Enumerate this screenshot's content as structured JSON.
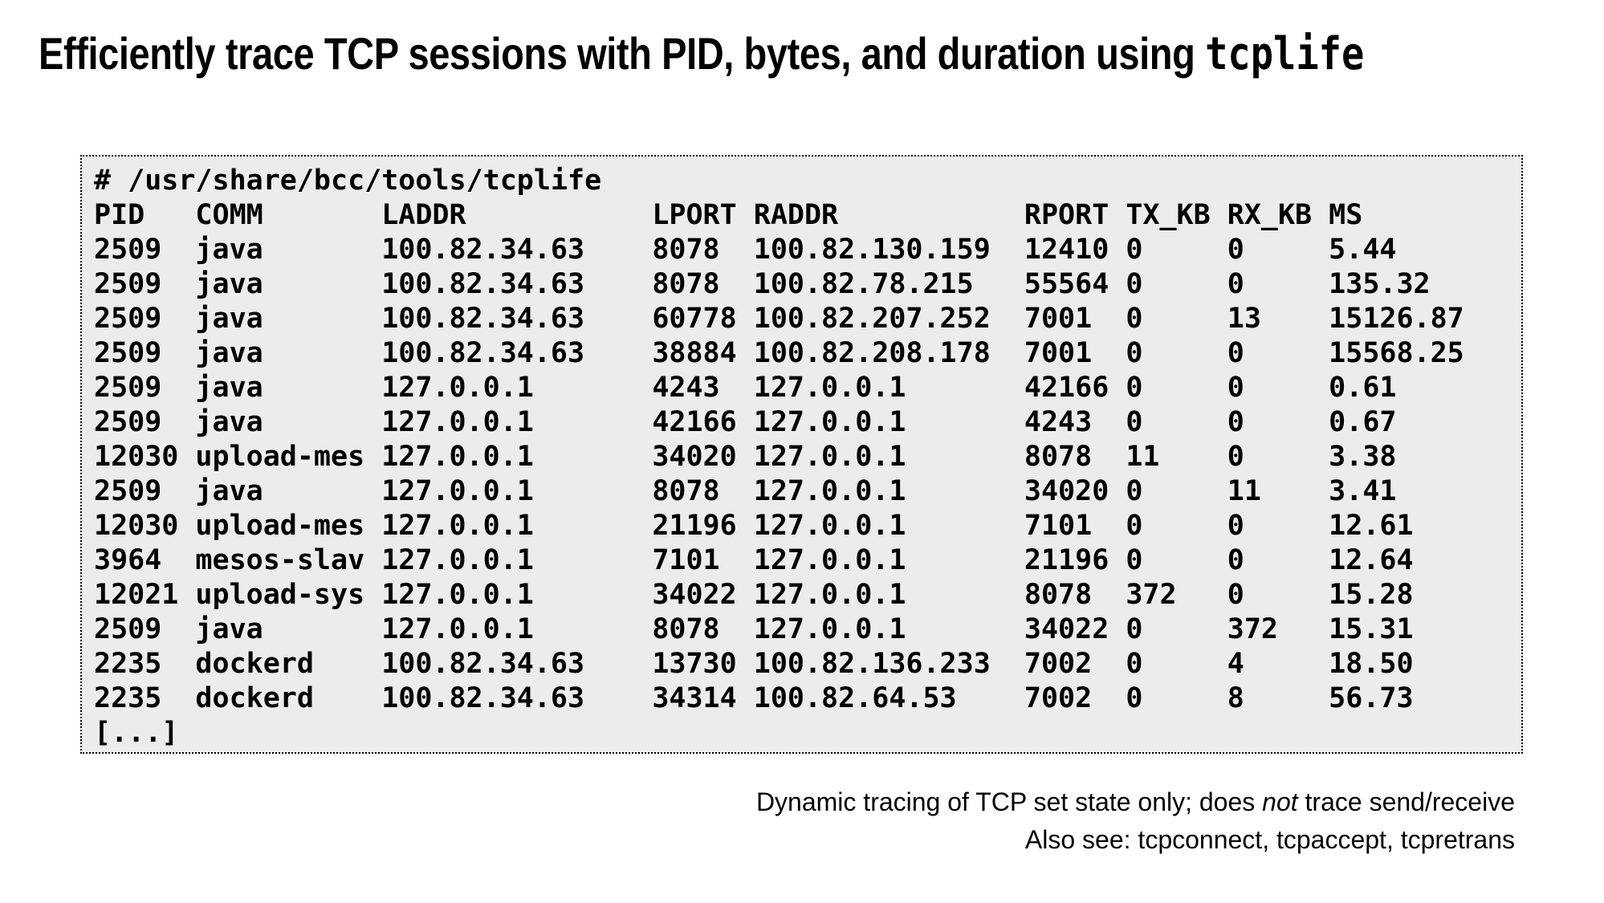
{
  "title": {
    "text_before": "Efficiently trace TCP sessions with PID, bytes, and duration using ",
    "code": "tcplife"
  },
  "terminal": {
    "command": "# /usr/share/bcc/tools/tcplife",
    "columns": [
      "PID",
      "COMM",
      "LADDR",
      "LPORT",
      "RADDR",
      "RPORT",
      "TX_KB",
      "RX_KB",
      "MS"
    ],
    "rows": [
      [
        "2509",
        "java",
        "100.82.34.63",
        "8078",
        "100.82.130.159",
        "12410",
        "0",
        "0",
        "5.44"
      ],
      [
        "2509",
        "java",
        "100.82.34.63",
        "8078",
        "100.82.78.215",
        "55564",
        "0",
        "0",
        "135.32"
      ],
      [
        "2509",
        "java",
        "100.82.34.63",
        "60778",
        "100.82.207.252",
        "7001",
        "0",
        "13",
        "15126.87"
      ],
      [
        "2509",
        "java",
        "100.82.34.63",
        "38884",
        "100.82.208.178",
        "7001",
        "0",
        "0",
        "15568.25"
      ],
      [
        "2509",
        "java",
        "127.0.0.1",
        "4243",
        "127.0.0.1",
        "42166",
        "0",
        "0",
        "0.61"
      ],
      [
        "2509",
        "java",
        "127.0.0.1",
        "42166",
        "127.0.0.1",
        "4243",
        "0",
        "0",
        "0.67"
      ],
      [
        "12030",
        "upload-mes",
        "127.0.0.1",
        "34020",
        "127.0.0.1",
        "8078",
        "11",
        "0",
        "3.38"
      ],
      [
        "2509",
        "java",
        "127.0.0.1",
        "8078",
        "127.0.0.1",
        "34020",
        "0",
        "11",
        "3.41"
      ],
      [
        "12030",
        "upload-mes",
        "127.0.0.1",
        "21196",
        "127.0.0.1",
        "7101",
        "0",
        "0",
        "12.61"
      ],
      [
        "3964",
        "mesos-slav",
        "127.0.0.1",
        "7101",
        "127.0.0.1",
        "21196",
        "0",
        "0",
        "12.64"
      ],
      [
        "12021",
        "upload-sys",
        "127.0.0.1",
        "34022",
        "127.0.0.1",
        "8078",
        "372",
        "0",
        "15.28"
      ],
      [
        "2509",
        "java",
        "127.0.0.1",
        "8078",
        "127.0.0.1",
        "34022",
        "0",
        "372",
        "15.31"
      ],
      [
        "2235",
        "dockerd",
        "100.82.34.63",
        "13730",
        "100.82.136.233",
        "7002",
        "0",
        "4",
        "18.50"
      ],
      [
        "2235",
        "dockerd",
        "100.82.34.63",
        "34314",
        "100.82.64.53",
        "7002",
        "0",
        "8",
        "56.73"
      ]
    ],
    "truncation": "[...]"
  },
  "footer": {
    "line1_before": "Dynamic tracing of TCP set state only; does ",
    "line1_italic": "not",
    "line1_after": " trace send/receive",
    "line2": "Also see: tcpconnect, tcpaccept, tcpretrans"
  },
  "colors": {
    "page_bg": "#ffffff",
    "terminal_bg": "#ececec",
    "terminal_border": "#000000",
    "text": "#000000"
  }
}
